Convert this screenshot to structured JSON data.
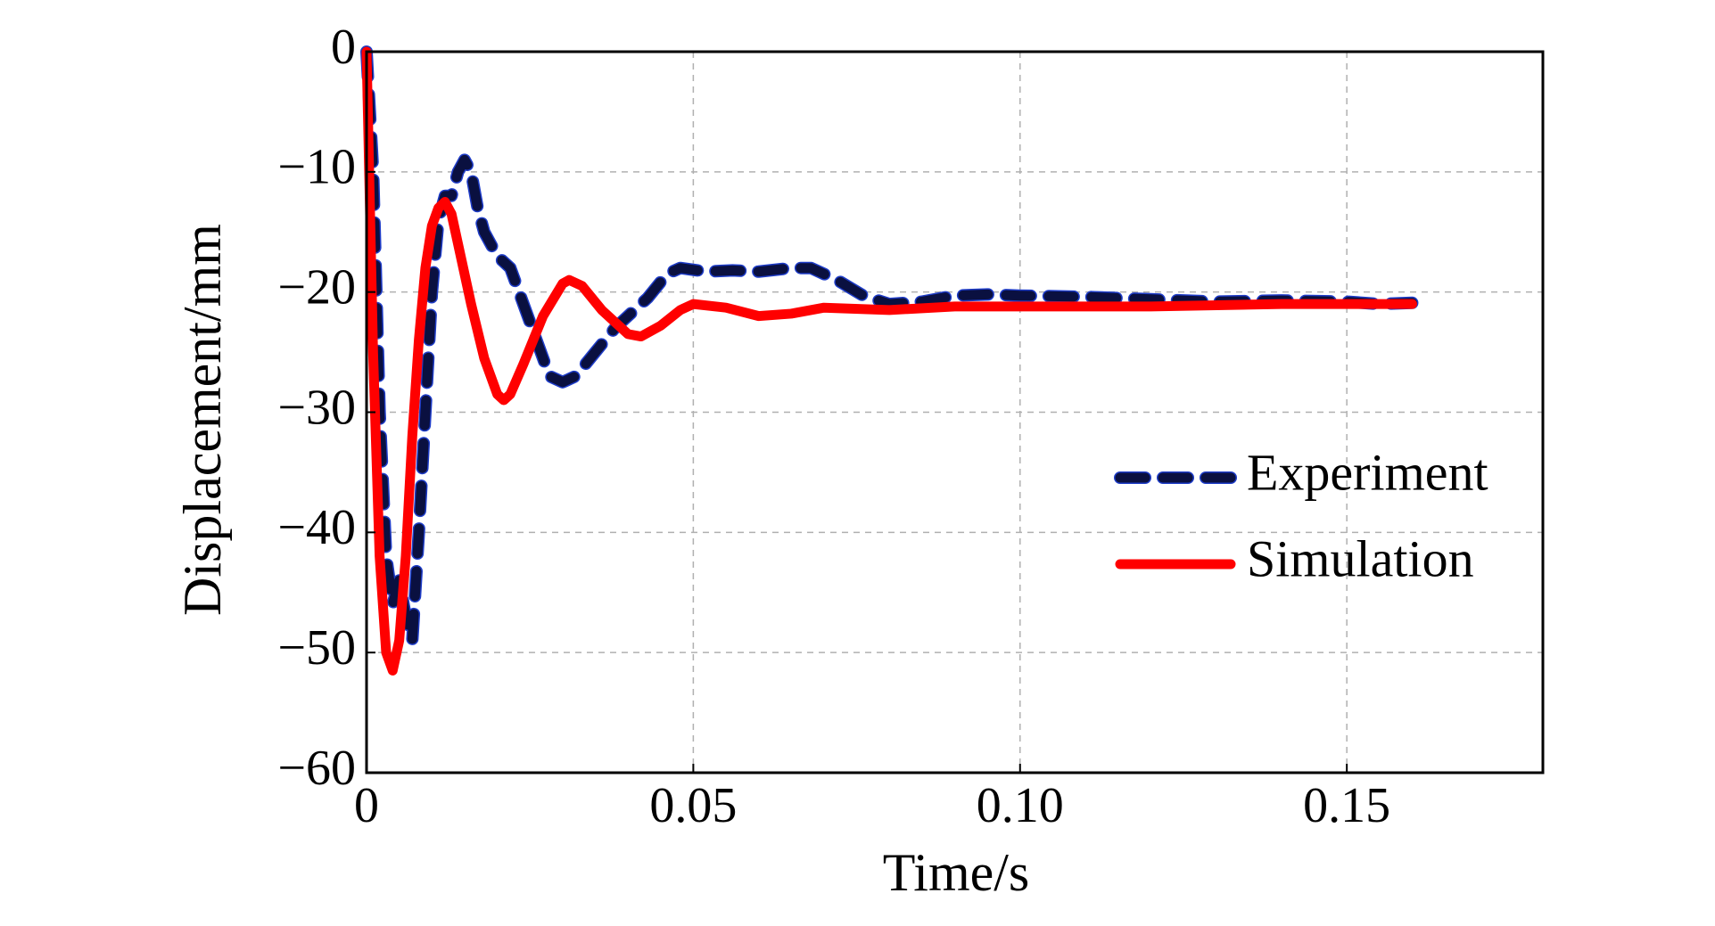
{
  "chart_data": {
    "type": "line",
    "xlabel": "Time/s",
    "ylabel": "Displacement/mm",
    "xlim": [
      0,
      0.18
    ],
    "ylim": [
      -60,
      0
    ],
    "xticks": [
      0,
      0.05,
      {
        "value": 0.1,
        "label": "0.10"
      },
      0.15
    ],
    "yticks": [
      {
        "value": 0,
        "label": "0"
      },
      {
        "value": -10,
        "label": "−10"
      },
      {
        "value": -20,
        "label": "−20"
      },
      {
        "value": -30,
        "label": "−30"
      },
      {
        "value": -40,
        "label": "−40"
      },
      {
        "value": -50,
        "label": "−50"
      },
      {
        "value": -60,
        "label": "−60"
      }
    ],
    "grid": true,
    "legend": "right",
    "series": [
      {
        "name": "Experiment",
        "color": "#0a1040",
        "dashed": true,
        "x": [
          0,
          0.001,
          0.002,
          0.003,
          0.004,
          0.005,
          0.006,
          0.007,
          0.008,
          0.009,
          0.01,
          0.011,
          0.012,
          0.013,
          0.014,
          0.015,
          0.016,
          0.017,
          0.018,
          0.02,
          0.022,
          0.024,
          0.026,
          0.028,
          0.03,
          0.032,
          0.035,
          0.038,
          0.04,
          0.043,
          0.046,
          0.048,
          0.052,
          0.056,
          0.06,
          0.065,
          0.068,
          0.072,
          0.076,
          0.08,
          0.085,
          0.09,
          0.095,
          0.1,
          0.11,
          0.12,
          0.13,
          0.14,
          0.15,
          0.155,
          0.16
        ],
        "values": [
          0,
          -10,
          -30,
          -42,
          -46,
          -44,
          -47,
          -49,
          -40,
          -30,
          -20,
          -14,
          -12,
          -12,
          -10,
          -9,
          -10,
          -13,
          -15,
          -17,
          -18,
          -21,
          -24,
          -27,
          -27.5,
          -27,
          -25,
          -23,
          -22,
          -20.5,
          -18.5,
          -18,
          -18.3,
          -18.2,
          -18.3,
          -18,
          -18,
          -19,
          -20.3,
          -21,
          -20.8,
          -20.3,
          -20.2,
          -20.3,
          -20.4,
          -20.6,
          -20.8,
          -20.7,
          -20.8,
          -21,
          -20.9
        ]
      },
      {
        "name": "Simulation",
        "color": "#ff0000",
        "dashed": false,
        "x": [
          0,
          0.001,
          0.002,
          0.003,
          0.004,
          0.005,
          0.006,
          0.007,
          0.008,
          0.009,
          0.01,
          0.011,
          0.012,
          0.013,
          0.014,
          0.016,
          0.018,
          0.02,
          0.021,
          0.022,
          0.024,
          0.027,
          0.03,
          0.031,
          0.033,
          0.036,
          0.04,
          0.042,
          0.045,
          0.048,
          0.05,
          0.055,
          0.06,
          0.065,
          0.07,
          0.08,
          0.09,
          0.1,
          0.12,
          0.14,
          0.16
        ],
        "values": [
          0,
          -25,
          -42,
          -50,
          -51.5,
          -49,
          -42,
          -32,
          -24,
          -18,
          -14.5,
          -13,
          -12.5,
          -13.5,
          -16,
          -21,
          -25.5,
          -28.5,
          -29,
          -28.5,
          -26,
          -22,
          -19.3,
          -19,
          -19.5,
          -21.5,
          -23.5,
          -23.7,
          -22.8,
          -21.5,
          -21,
          -21.3,
          -22,
          -21.8,
          -21.3,
          -21.5,
          -21.2,
          -21.2,
          -21.2,
          -21,
          -21
        ]
      }
    ]
  }
}
